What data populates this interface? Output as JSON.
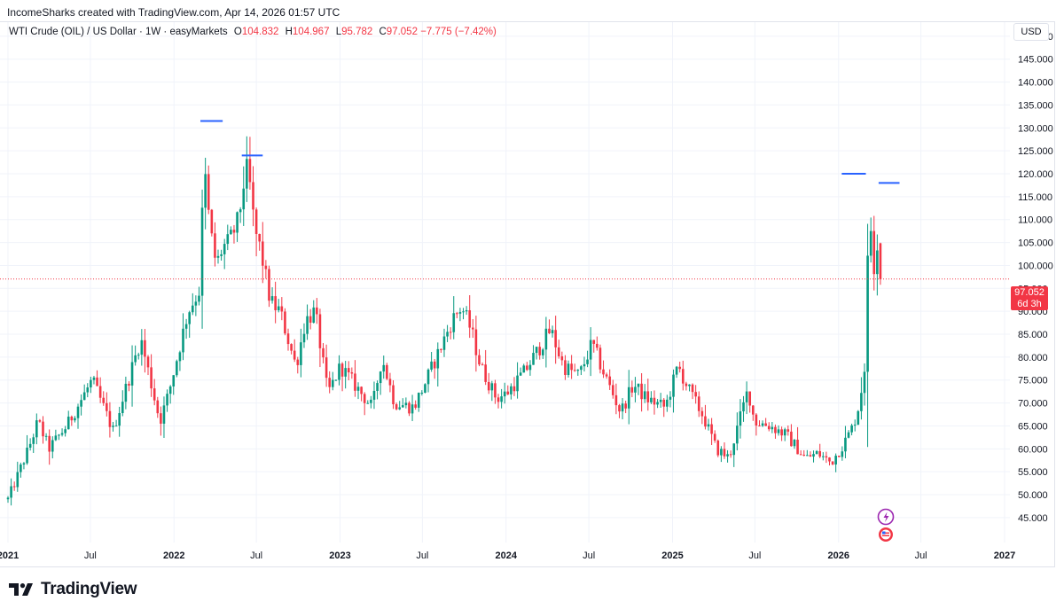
{
  "caption": "IncomeSharks created with TradingView.com, Apr 14, 2026 01:57 UTC",
  "legend": {
    "symbol": "WTI Crude (OIL) / US Dollar · 1W · easyMarkets",
    "o_label": "O",
    "o_value": "104.832",
    "h_label": "H",
    "h_value": "104.967",
    "l_label": "L",
    "l_value": "95.782",
    "c_label": "C",
    "c_value": "97.052",
    "change": "−7.775 (−7.42%)"
  },
  "currency": "USD",
  "price_badge": {
    "price": "97.052",
    "countdown": "6d 3h"
  },
  "brand": "TradingView",
  "colors": {
    "up": "#089981",
    "down": "#f23645",
    "annotation": "#2962ff",
    "grid": "#f0f3fa",
    "axis_text": "#131722"
  },
  "chart_data": {
    "type": "candlestick",
    "interval": "1W",
    "y_axis_ticks": [
      45,
      50,
      55,
      60,
      65,
      70,
      75,
      80,
      85,
      90,
      95,
      100,
      105,
      110,
      115,
      120,
      125,
      130,
      135,
      140,
      145,
      150
    ],
    "y_tick_labels": [
      "45.000",
      "50.000",
      "55.000",
      "60.000",
      "65.000",
      "70.000",
      "75.000",
      "80.000",
      "85.000",
      "90.000",
      "95.000",
      "100.000",
      "105.000",
      "110.000",
      "115.000",
      "120.000",
      "125.000",
      "130.000",
      "135.000",
      "140.000",
      "145.000",
      "150.000"
    ],
    "ylim": [
      41.5,
      155
    ],
    "x_axis_ticks": [
      {
        "label": "2021",
        "date": "2021-01-01"
      },
      {
        "label": "Jul",
        "date": "2021-07-01"
      },
      {
        "label": "2022",
        "date": "2022-01-01"
      },
      {
        "label": "Jul",
        "date": "2022-07-01"
      },
      {
        "label": "2023",
        "date": "2023-01-01"
      },
      {
        "label": "Jul",
        "date": "2023-07-01"
      },
      {
        "label": "2024",
        "date": "2024-01-01"
      },
      {
        "label": "Jul",
        "date": "2024-07-01"
      },
      {
        "label": "2025",
        "date": "2025-01-01"
      },
      {
        "label": "Jul",
        "date": "2025-07-01"
      },
      {
        "label": "2026",
        "date": "2026-01-01"
      },
      {
        "label": "Jul",
        "date": "2026-07-01"
      },
      {
        "label": "2027",
        "date": "2027-01-01"
      }
    ],
    "xlim": [
      "2021-01-01",
      "2027-01-01"
    ],
    "current_price": 97.052,
    "anchors": [
      [
        "2021-01-01",
        49
      ],
      [
        "2021-02-15",
        60
      ],
      [
        "2021-03-08",
        66
      ],
      [
        "2021-04-01",
        60
      ],
      [
        "2021-05-10",
        65
      ],
      [
        "2021-07-05",
        75
      ],
      [
        "2021-08-20",
        64
      ],
      [
        "2021-10-20",
        84
      ],
      [
        "2021-12-01",
        66
      ],
      [
        "2021-12-20",
        72
      ],
      [
        "2022-02-01",
        90
      ],
      [
        "2022-02-28",
        95
      ],
      [
        "2022-03-07",
        123
      ],
      [
        "2022-03-21",
        108
      ],
      [
        "2022-04-04",
        100
      ],
      [
        "2022-04-18",
        104
      ],
      [
        "2022-05-02",
        105
      ],
      [
        "2022-05-23",
        110
      ],
      [
        "2022-06-06",
        120
      ],
      [
        "2022-06-13",
        121
      ],
      [
        "2022-06-27",
        108
      ],
      [
        "2022-07-11",
        103
      ],
      [
        "2022-08-01",
        92
      ],
      [
        "2022-08-22",
        90
      ],
      [
        "2022-09-26",
        78
      ],
      [
        "2022-10-17",
        88
      ],
      [
        "2022-11-07",
        90
      ],
      [
        "2022-12-05",
        72
      ],
      [
        "2023-01-02",
        78
      ],
      [
        "2023-03-13",
        69
      ],
      [
        "2023-04-03",
        80
      ],
      [
        "2023-05-01",
        70
      ],
      [
        "2023-06-12",
        69
      ],
      [
        "2023-07-10",
        75
      ],
      [
        "2023-08-14",
        83
      ],
      [
        "2023-09-04",
        88
      ],
      [
        "2023-09-25",
        91
      ],
      [
        "2023-10-16",
        86
      ],
      [
        "2023-11-06",
        78
      ],
      [
        "2023-12-11",
        71
      ],
      [
        "2024-01-01",
        72
      ],
      [
        "2024-02-12",
        77
      ],
      [
        "2024-04-08",
        86
      ],
      [
        "2024-05-06",
        78
      ],
      [
        "2024-06-10",
        76
      ],
      [
        "2024-07-08",
        83
      ],
      [
        "2024-08-05",
        76
      ],
      [
        "2024-09-09",
        68
      ],
      [
        "2024-10-07",
        74
      ],
      [
        "2024-11-04",
        71
      ],
      [
        "2024-12-16",
        69
      ],
      [
        "2025-01-13",
        78
      ],
      [
        "2025-02-10",
        72
      ],
      [
        "2025-03-10",
        67
      ],
      [
        "2025-04-07",
        60
      ],
      [
        "2025-05-05",
        58
      ],
      [
        "2025-06-16",
        73
      ],
      [
        "2025-06-30",
        66
      ],
      [
        "2025-08-04",
        65
      ],
      [
        "2025-09-08",
        63
      ],
      [
        "2025-10-20",
        58
      ],
      [
        "2025-11-17",
        59
      ],
      [
        "2025-12-15",
        57
      ],
      [
        "2026-01-12",
        61
      ],
      [
        "2026-02-02",
        65
      ],
      [
        "2026-02-16",
        70
      ],
      [
        "2026-03-02",
        80
      ],
      [
        "2026-03-09",
        116
      ],
      [
        "2026-03-16",
        102
      ],
      [
        "2026-03-23",
        98
      ],
      [
        "2026-03-30",
        111
      ],
      [
        "2026-04-06",
        97.052
      ]
    ],
    "annotations": [
      {
        "type": "hline",
        "date_from": "2022-02-28",
        "date_to": "2022-04-18",
        "price": 131.5
      },
      {
        "type": "hline",
        "date_from": "2022-05-30",
        "date_to": "2022-07-15",
        "price": 124
      },
      {
        "type": "hline",
        "date_from": "2026-01-08",
        "date_to": "2026-03-02",
        "price": 120
      },
      {
        "type": "hline",
        "date_from": "2026-03-30",
        "date_to": "2026-05-15",
        "price": 118
      }
    ]
  }
}
